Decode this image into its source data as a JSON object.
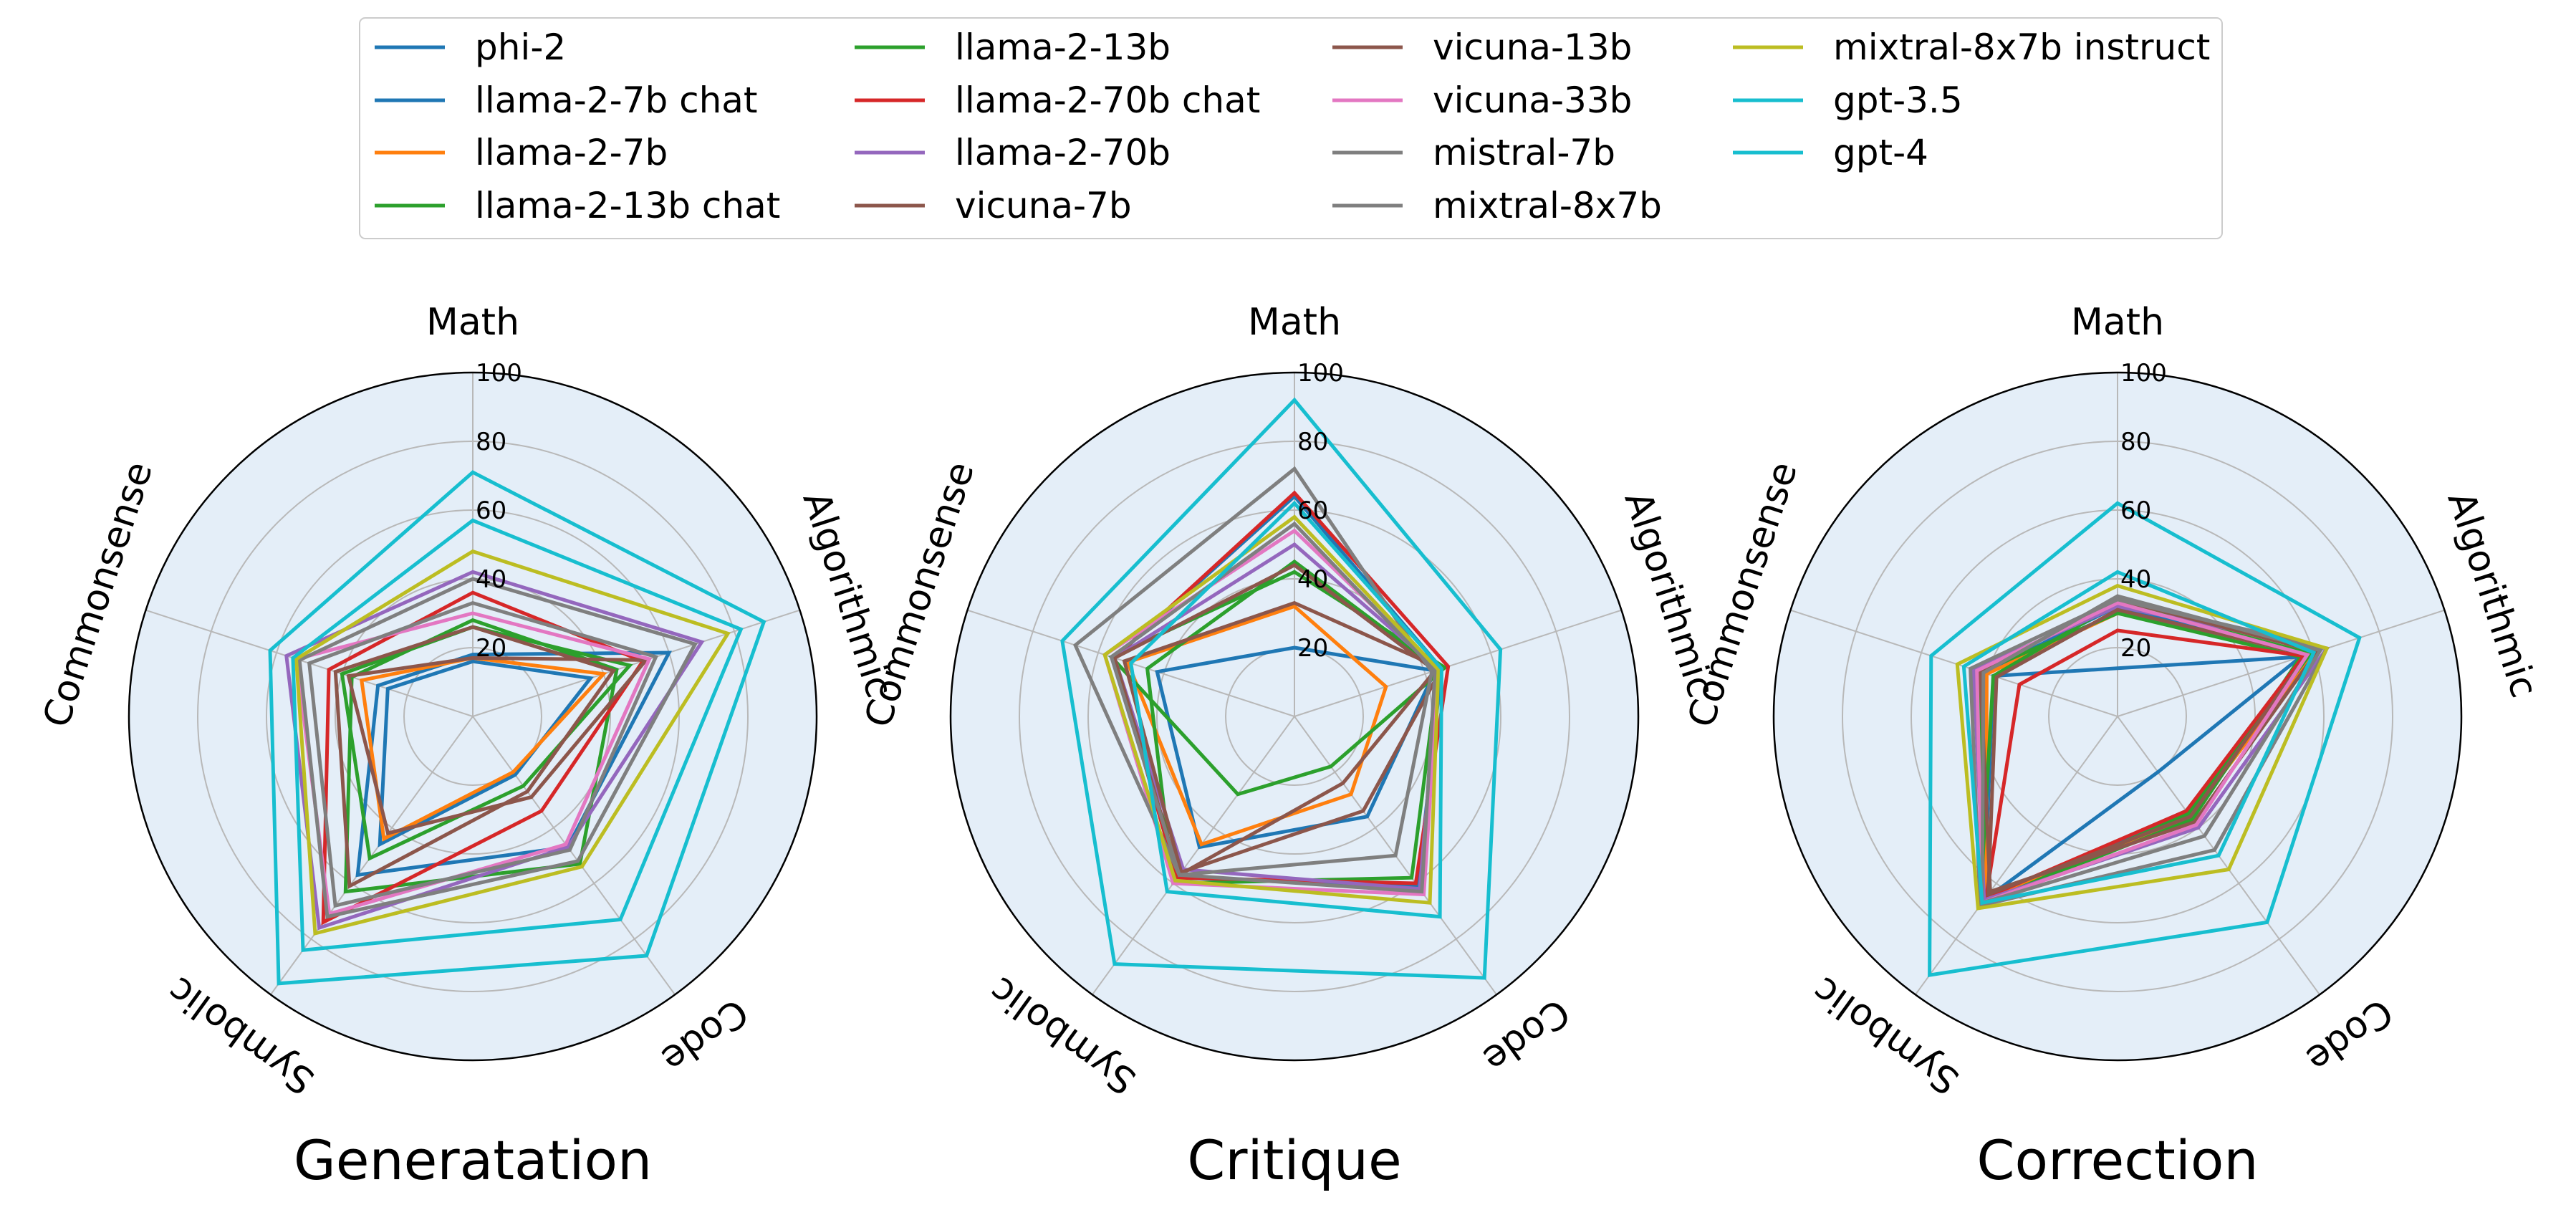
{
  "chart_data": [
    {
      "type": "radar",
      "title": "Generatation",
      "axes": [
        "Math",
        "Algorithmic",
        "Code",
        "Symbolic",
        "Commonsense"
      ],
      "rticks": [
        "20",
        "40",
        "60",
        "80",
        "100"
      ],
      "rlim": [
        0,
        100
      ],
      "grid": true,
      "series": [
        {
          "name": "phi-2",
          "values": [
            16,
            36,
            21,
            46,
            26
          ]
        },
        {
          "name": "llama-2-7b chat",
          "values": [
            18,
            60,
            47,
            57,
            29
          ]
        },
        {
          "name": "llama-2-7b",
          "values": [
            17,
            40,
            20,
            44,
            34
          ]
        },
        {
          "name": "llama-2-13b chat",
          "values": [
            28,
            44,
            53,
            63,
            37
          ]
        },
        {
          "name": "llama-2-13b",
          "values": [
            26,
            48,
            25,
            51,
            40
          ]
        },
        {
          "name": "llama-2-70b chat",
          "values": [
            36,
            52,
            34,
            74,
            44
          ]
        },
        {
          "name": "llama-2-70b",
          "values": [
            42,
            70,
            47,
            76,
            57
          ]
        },
        {
          "name": "vicuna-7b",
          "values": [
            17,
            53,
            29,
            42,
            38
          ]
        },
        {
          "name": "vicuna-13b",
          "values": [
            26,
            43,
            27,
            61,
            42
          ]
        },
        {
          "name": "vicuna-33b",
          "values": [
            30,
            54,
            46,
            71,
            54
          ]
        },
        {
          "name": "mistral-7b",
          "values": [
            33,
            56,
            48,
            68,
            50
          ]
        },
        {
          "name": "mixtral-8x7b",
          "values": [
            40,
            68,
            52,
            72,
            53
          ]
        },
        {
          "name": "mixtral-8x7b instruct",
          "values": [
            48,
            78,
            54,
            78,
            54
          ]
        },
        {
          "name": "gpt-3.5",
          "values": [
            57,
            82,
            73,
            84,
            55
          ]
        },
        {
          "name": "gpt-4",
          "values": [
            71,
            89,
            86,
            96,
            62
          ]
        }
      ],
      "colors": [
        "#1f77b4",
        "#1f77b4",
        "#ff7f0e",
        "#2ca02c",
        "#2ca02c",
        "#d62728",
        "#9467bd",
        "#8c564b",
        "#8c564b",
        "#e377c2",
        "#7f7f7f",
        "#7f7f7f",
        "#bcbd22",
        "#17becf",
        "#17becf"
      ]
    },
    {
      "type": "radar",
      "title": "Critique",
      "axes": [
        "Math",
        "Algorithmic",
        "Code",
        "Symbolic",
        "Commonsense"
      ],
      "rticks": [
        "20",
        "40",
        "60",
        "80",
        "100"
      ],
      "rlim": [
        0,
        100
      ],
      "grid": true,
      "series": [
        {
          "name": "phi-2",
          "values": [
            20,
            43,
            36,
            47,
            42
          ]
        },
        {
          "name": "llama-2-7b chat",
          "values": [
            64,
            45,
            61,
            58,
            55
          ]
        },
        {
          "name": "llama-2-7b",
          "values": [
            32,
            28,
            28,
            46,
            51
          ]
        },
        {
          "name": "llama-2-13b chat",
          "values": [
            45,
            44,
            58,
            60,
            45
          ]
        },
        {
          "name": "llama-2-13b",
          "values": [
            42,
            46,
            18,
            28,
            56
          ]
        },
        {
          "name": "llama-2-70b chat",
          "values": [
            65,
            47,
            60,
            58,
            55
          ]
        },
        {
          "name": "llama-2-70b",
          "values": [
            50,
            44,
            62,
            55,
            55
          ]
        },
        {
          "name": "vicuna-7b",
          "values": [
            33,
            45,
            34,
            56,
            52
          ]
        },
        {
          "name": "vicuna-13b",
          "values": [
            44,
            43,
            24,
            57,
            55
          ]
        },
        {
          "name": "vicuna-33b",
          "values": [
            54,
            44,
            64,
            60,
            58
          ]
        },
        {
          "name": "mistral-7b",
          "values": [
            56,
            43,
            63,
            57,
            56
          ]
        },
        {
          "name": "mixtral-8x7b",
          "values": [
            72,
            42,
            50,
            57,
            67
          ]
        },
        {
          "name": "mixtral-8x7b instruct",
          "values": [
            58,
            44,
            67,
            59,
            58
          ]
        },
        {
          "name": "gpt-3.5",
          "values": [
            62,
            45,
            72,
            63,
            50
          ]
        },
        {
          "name": "gpt-4",
          "values": [
            92,
            63,
            94,
            89,
            71
          ]
        }
      ],
      "colors": [
        "#1f77b4",
        "#1f77b4",
        "#ff7f0e",
        "#2ca02c",
        "#2ca02c",
        "#d62728",
        "#9467bd",
        "#8c564b",
        "#8c564b",
        "#e377c2",
        "#7f7f7f",
        "#7f7f7f",
        "#bcbd22",
        "#17becf",
        "#17becf"
      ]
    },
    {
      "type": "radar",
      "title": "Correction",
      "axes": [
        "Math",
        "Algorithmic",
        "Code",
        "Symbolic",
        "Commonsense"
      ],
      "rticks": [
        "20",
        "40",
        "60",
        "80",
        "100"
      ],
      "rlim": [
        0,
        100
      ],
      "grid": true,
      "series": [
        {
          "name": "phi-2",
          "values": [
            14,
            56,
            20,
            66,
            38
          ]
        },
        {
          "name": "llama-2-7b chat",
          "values": [
            32,
            58,
            34,
            66,
            41
          ]
        },
        {
          "name": "llama-2-7b",
          "values": [
            30,
            60,
            36,
            65,
            40
          ]
        },
        {
          "name": "llama-2-13b chat",
          "values": [
            33,
            59,
            35,
            68,
            38
          ]
        },
        {
          "name": "llama-2-13b",
          "values": [
            30,
            56,
            37,
            67,
            42
          ]
        },
        {
          "name": "llama-2-70b chat",
          "values": [
            25,
            57,
            34,
            65,
            30
          ]
        },
        {
          "name": "llama-2-70b",
          "values": [
            32,
            64,
            40,
            66,
            44
          ]
        },
        {
          "name": "vicuna-7b",
          "values": [
            31,
            58,
            36,
            64,
            37
          ]
        },
        {
          "name": "vicuna-13b",
          "values": [
            34,
            61,
            38,
            63,
            42
          ]
        },
        {
          "name": "vicuna-33b",
          "values": [
            33,
            58,
            39,
            67,
            43
          ]
        },
        {
          "name": "mistral-7b",
          "values": [
            35,
            62,
            43,
            67,
            41
          ]
        },
        {
          "name": "mixtral-8x7b",
          "values": [
            34,
            64,
            48,
            68,
            45
          ]
        },
        {
          "name": "mixtral-8x7b instruct",
          "values": [
            38,
            64,
            55,
            69,
            49
          ]
        },
        {
          "name": "gpt-3.5",
          "values": [
            42,
            60,
            50,
            67,
            47
          ]
        },
        {
          "name": "gpt-4",
          "values": [
            62,
            74,
            74,
            93,
            57
          ]
        }
      ],
      "colors": [
        "#1f77b4",
        "#1f77b4",
        "#ff7f0e",
        "#2ca02c",
        "#2ca02c",
        "#d62728",
        "#9467bd",
        "#8c564b",
        "#8c564b",
        "#e377c2",
        "#7f7f7f",
        "#7f7f7f",
        "#bcbd22",
        "#17becf",
        "#17becf"
      ]
    }
  ],
  "legend": {
    "placement": "top",
    "columns": 4,
    "entries": [
      "phi-2",
      "llama-2-7b chat",
      "llama-2-7b",
      "llama-2-13b chat",
      "llama-2-13b",
      "llama-2-70b chat",
      "llama-2-70b",
      "vicuna-7b",
      "vicuna-13b",
      "vicuna-33b",
      "mistral-7b",
      "mixtral-8x7b",
      "mixtral-8x7b instruct",
      "gpt-3.5",
      "gpt-4"
    ]
  }
}
